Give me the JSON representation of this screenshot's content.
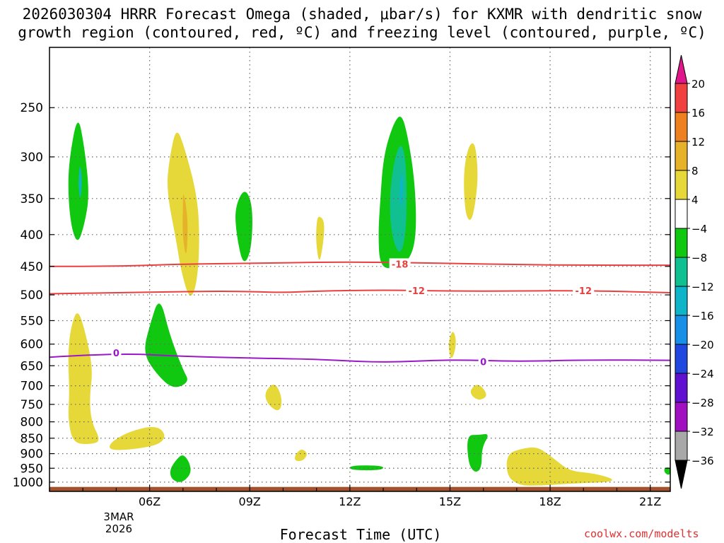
{
  "chart_data": {
    "type": "contour",
    "title_line1": "2026030304 HRRR Forecast Omega (shaded, μbar/s) for KXMR with dendritic snow",
    "title_line2": "growth region (contoured, red, ºC) and freezing level (contoured, purple, ºC)",
    "xlabel": "Forecast Time (UTC)",
    "date_labels": [
      "3MAR",
      "2026"
    ],
    "credit": "coolwx.com/modelts",
    "x_range_hours": [
      3.0,
      21.6
    ],
    "x_ticks": [
      {
        "hour": 6,
        "label": "06Z"
      },
      {
        "hour": 9,
        "label": "09Z"
      },
      {
        "hour": 12,
        "label": "12Z"
      },
      {
        "hour": 15,
        "label": "15Z"
      },
      {
        "hour": 18,
        "label": "18Z"
      },
      {
        "hour": 21,
        "label": "21Z"
      }
    ],
    "y_range_hpa": [
      1035,
      200
    ],
    "y_ticks": [
      250,
      300,
      350,
      400,
      450,
      500,
      550,
      600,
      650,
      700,
      750,
      800,
      850,
      900,
      950,
      1000
    ],
    "colorbar": {
      "labels": [
        "20",
        "16",
        "12",
        "8",
        "4",
        "-4",
        "-8",
        "-12",
        "-16",
        "-20",
        "-24",
        "-28",
        "-32",
        "-36"
      ],
      "levels": [
        20,
        16,
        12,
        8,
        4,
        -4,
        -8,
        -12,
        -16,
        -20,
        -24,
        -28,
        -32,
        -36
      ],
      "bins": [
        {
          "from": 20,
          "to": null,
          "color": "#e0168a"
        },
        {
          "from": 16,
          "to": 20,
          "color": "#f04040"
        },
        {
          "from": 12,
          "to": 16,
          "color": "#ee8020"
        },
        {
          "from": 8,
          "to": 12,
          "color": "#e6b22a"
        },
        {
          "from": 4,
          "to": 8,
          "color": "#e6d838"
        },
        {
          "from": -4,
          "to": 4,
          "color": "#ffffff"
        },
        {
          "from": -8,
          "to": -4,
          "color": "#10c810"
        },
        {
          "from": -12,
          "to": -8,
          "color": "#10c090"
        },
        {
          "from": -16,
          "to": -12,
          "color": "#10b4c8"
        },
        {
          "from": -20,
          "to": -16,
          "color": "#1890e8"
        },
        {
          "from": -24,
          "to": -20,
          "color": "#2048e0"
        },
        {
          "from": -28,
          "to": -24,
          "color": "#6010d0"
        },
        {
          "from": -32,
          "to": -28,
          "color": "#a010c0"
        },
        {
          "from": -36,
          "to": -32,
          "color": "#a8a8a8"
        },
        {
          "from": null,
          "to": -36,
          "color": "#000000"
        }
      ]
    },
    "contours": [
      {
        "name": "dgz-minus-18",
        "label": "-18",
        "color": "#e84040",
        "label_at": [
          [
            13.5,
            446
          ]
        ],
        "points": [
          [
            3.0,
            450
          ],
          [
            5.0,
            450
          ],
          [
            7.0,
            446
          ],
          [
            9.0,
            445
          ],
          [
            11.0,
            443
          ],
          [
            13.0,
            443
          ],
          [
            15.0,
            445
          ],
          [
            17.0,
            447
          ],
          [
            19.0,
            448
          ],
          [
            21.6,
            448
          ]
        ]
      },
      {
        "name": "dgz-minus-12",
        "label": "-12",
        "color": "#e84040",
        "label_at": [
          [
            14.0,
            492
          ],
          [
            19.0,
            492
          ]
        ],
        "points": [
          [
            3.0,
            498
          ],
          [
            5.0,
            496
          ],
          [
            7.0,
            494
          ],
          [
            8.5,
            493
          ],
          [
            10.0,
            496
          ],
          [
            11.0,
            493
          ],
          [
            13.0,
            491
          ],
          [
            15.0,
            493
          ],
          [
            17.0,
            493
          ],
          [
            19.0,
            492
          ],
          [
            21.6,
            496
          ]
        ]
      },
      {
        "name": "freezing-level-0",
        "label": "0",
        "color": "#9a18c8",
        "label_at": [
          [
            5.0,
            620
          ],
          [
            16.0,
            640
          ]
        ],
        "points": [
          [
            3.0,
            630
          ],
          [
            5.0,
            620
          ],
          [
            7.0,
            628
          ],
          [
            9.0,
            632
          ],
          [
            11.0,
            634
          ],
          [
            13.0,
            643
          ],
          [
            15.0,
            635
          ],
          [
            17.0,
            640
          ],
          [
            19.0,
            636
          ],
          [
            21.6,
            637
          ]
        ]
      }
    ],
    "omega_regions": [
      {
        "value": -6,
        "points": [
          [
            3.55,
            340
          ],
          [
            3.6,
            300
          ],
          [
            3.85,
            255
          ],
          [
            4.05,
            290
          ],
          [
            4.2,
            345
          ],
          [
            4.05,
            385
          ],
          [
            3.85,
            415
          ],
          [
            3.65,
            390
          ]
        ]
      },
      {
        "value": -14,
        "points": [
          [
            3.92,
            305
          ],
          [
            3.98,
            330
          ],
          [
            3.92,
            355
          ],
          [
            3.86,
            330
          ]
        ]
      },
      {
        "value": 6,
        "points": [
          [
            6.5,
            338
          ],
          [
            6.6,
            300
          ],
          [
            6.8,
            268
          ],
          [
            7.05,
            290
          ],
          [
            7.45,
            350
          ],
          [
            7.5,
            420
          ],
          [
            7.4,
            485
          ],
          [
            7.2,
            510
          ],
          [
            6.95,
            460
          ],
          [
            6.8,
            410
          ]
        ]
      },
      {
        "value": 10,
        "points": [
          [
            7.0,
            340
          ],
          [
            7.1,
            360
          ],
          [
            7.15,
            390
          ],
          [
            7.1,
            440
          ],
          [
            6.98,
            400
          ],
          [
            7.0,
            360
          ]
        ]
      },
      {
        "value": -6,
        "points": [
          [
            8.55,
            362
          ],
          [
            8.85,
            335
          ],
          [
            9.1,
            360
          ],
          [
            9.05,
            425
          ],
          [
            8.8,
            450
          ],
          [
            8.6,
            400
          ]
        ]
      },
      {
        "value": 6,
        "points": [
          [
            11.0,
            385
          ],
          [
            11.05,
            372
          ],
          [
            11.25,
            380
          ],
          [
            11.2,
            415
          ],
          [
            11.08,
            448
          ],
          [
            10.98,
            410
          ]
        ]
      },
      {
        "value": -6,
        "points": [
          [
            12.9,
            360
          ],
          [
            13.0,
            300
          ],
          [
            13.3,
            265
          ],
          [
            13.55,
            255
          ],
          [
            13.75,
            280
          ],
          [
            13.95,
            330
          ],
          [
            14.0,
            400
          ],
          [
            13.8,
            440
          ],
          [
            13.3,
            455
          ],
          [
            12.9,
            450
          ],
          [
            12.85,
            400
          ]
        ]
      },
      {
        "value": -10,
        "points": [
          [
            13.2,
            340
          ],
          [
            13.35,
            300
          ],
          [
            13.55,
            283
          ],
          [
            13.7,
            310
          ],
          [
            13.7,
            390
          ],
          [
            13.55,
            430
          ],
          [
            13.35,
            420
          ],
          [
            13.2,
            380
          ]
        ]
      },
      {
        "value": -14,
        "points": [
          [
            13.5,
            330
          ],
          [
            13.55,
            315
          ],
          [
            13.6,
            335
          ],
          [
            13.55,
            365
          ],
          [
            13.48,
            350
          ]
        ]
      },
      {
        "value": 6,
        "points": [
          [
            15.4,
            318
          ],
          [
            15.55,
            288
          ],
          [
            15.75,
            283
          ],
          [
            15.85,
            320
          ],
          [
            15.75,
            360
          ],
          [
            15.62,
            383
          ],
          [
            15.45,
            370
          ]
        ]
      },
      {
        "value": 6,
        "points": [
          [
            3.55,
            620
          ],
          [
            3.65,
            560
          ],
          [
            3.85,
            525
          ],
          [
            4.1,
            580
          ],
          [
            4.3,
            660
          ],
          [
            4.2,
            730
          ],
          [
            4.25,
            800
          ],
          [
            4.55,
            860
          ],
          [
            4.2,
            870
          ],
          [
            3.7,
            865
          ],
          [
            3.55,
            790
          ],
          [
            3.6,
            720
          ]
        ]
      },
      {
        "value": 6,
        "points": [
          [
            4.8,
            865
          ],
          [
            5.4,
            828
          ],
          [
            6.2,
            810
          ],
          [
            6.5,
            840
          ],
          [
            6.3,
            870
          ],
          [
            5.6,
            885
          ],
          [
            4.8,
            890
          ]
        ]
      },
      {
        "value": -6,
        "points": [
          [
            5.8,
            620
          ],
          [
            6.0,
            560
          ],
          [
            6.3,
            500
          ],
          [
            6.6,
            580
          ],
          [
            7.0,
            660
          ],
          [
            7.2,
            690
          ],
          [
            6.7,
            710
          ],
          [
            6.2,
            670
          ]
        ]
      },
      {
        "value": -6,
        "points": [
          [
            6.6,
            955
          ],
          [
            6.8,
            920
          ],
          [
            7.0,
            900
          ],
          [
            7.2,
            930
          ],
          [
            7.25,
            970
          ],
          [
            6.95,
            1005
          ],
          [
            6.65,
            990
          ]
        ]
      },
      {
        "value": 6,
        "points": [
          [
            9.45,
            715
          ],
          [
            9.75,
            690
          ],
          [
            9.95,
            725
          ],
          [
            9.95,
            760
          ],
          [
            9.8,
            770
          ],
          [
            9.5,
            745
          ]
        ]
      },
      {
        "value": 6,
        "points": [
          [
            10.35,
            905
          ],
          [
            10.55,
            882
          ],
          [
            10.75,
            900
          ],
          [
            10.6,
            925
          ],
          [
            10.35,
            925
          ]
        ]
      },
      {
        "value": -6,
        "points": [
          [
            12.0,
            940
          ],
          [
            13.0,
            940
          ],
          [
            13.0,
            957
          ],
          [
            12.0,
            957
          ]
        ]
      },
      {
        "value": 6,
        "points": [
          [
            15.0,
            580
          ],
          [
            15.12,
            570
          ],
          [
            15.2,
            600
          ],
          [
            15.05,
            640
          ],
          [
            14.95,
            610
          ]
        ]
      },
      {
        "value": 6,
        "points": [
          [
            15.6,
            710
          ],
          [
            15.85,
            692
          ],
          [
            16.15,
            725
          ],
          [
            15.9,
            740
          ],
          [
            15.65,
            728
          ]
        ]
      },
      {
        "value": -6,
        "points": [
          [
            15.5,
            840
          ],
          [
            15.85,
            840
          ],
          [
            16.2,
            835
          ],
          [
            15.95,
            880
          ],
          [
            15.95,
            950
          ],
          [
            15.75,
            968
          ],
          [
            15.55,
            935
          ]
        ]
      },
      {
        "value": 6,
        "points": [
          [
            16.7,
            900
          ],
          [
            17.2,
            882
          ],
          [
            17.6,
            878
          ],
          [
            17.9,
            898
          ],
          [
            18.2,
            925
          ],
          [
            18.6,
            960
          ],
          [
            19.3,
            968
          ],
          [
            19.9,
            988
          ],
          [
            19.8,
            1000
          ],
          [
            18.7,
            1005
          ],
          [
            17.4,
            1015
          ],
          [
            17.0,
            1008
          ],
          [
            16.7,
            975
          ]
        ]
      },
      {
        "value": -6,
        "points": [
          [
            21.4,
            950
          ],
          [
            21.6,
            945
          ],
          [
            21.6,
            975
          ],
          [
            21.45,
            970
          ]
        ]
      }
    ],
    "terrain": {
      "color": "#a0522d",
      "surface_hpa": 1018
    }
  }
}
